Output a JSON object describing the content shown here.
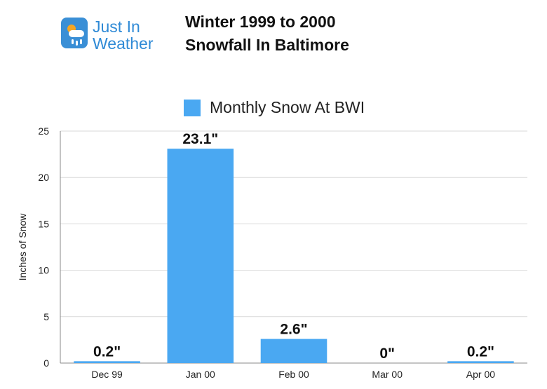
{
  "logo": {
    "line1": "Just In",
    "line2": "Weather",
    "icon": "weather-cloud-sun-icon"
  },
  "header": {
    "title_line1": "Winter 1999 to 2000",
    "title_line2": "Snowfall In Baltimore"
  },
  "chart_data": {
    "type": "bar",
    "title": "Winter 1999 to 2000 Snowfall In Baltimore",
    "categories": [
      "Dec 99",
      "Jan 00",
      "Feb 00",
      "Mar 00",
      "Apr 00"
    ],
    "series": [
      {
        "name": "Monthly Snow At BWI",
        "values": [
          0.2,
          23.1,
          2.6,
          0,
          0.2
        ],
        "data_labels": [
          "0.2\"",
          "23.1\"",
          "2.6\"",
          "0\"",
          "0.2\""
        ],
        "color": "#4aa8f2"
      }
    ],
    "xlabel": "",
    "ylabel": "Inches of Snow",
    "ylim": [
      0,
      25
    ],
    "yticks": [
      0,
      5,
      10,
      15,
      20,
      25
    ],
    "grid": true,
    "legend": "top"
  }
}
